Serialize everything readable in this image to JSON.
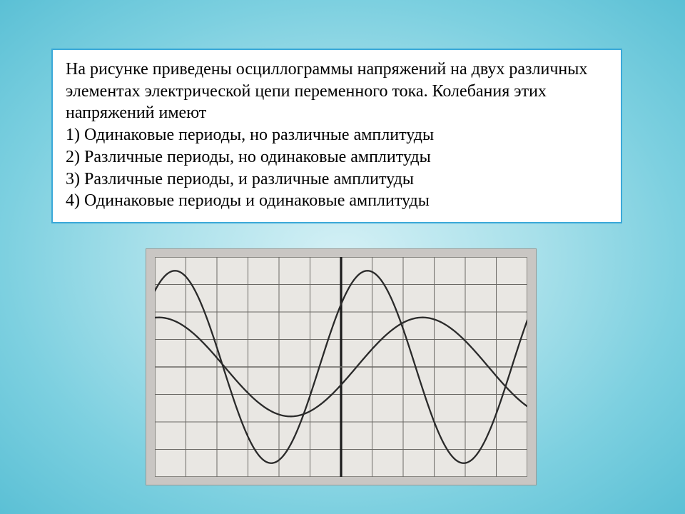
{
  "question": {
    "intro": "На рисунке приведены осциллограммы напряжений на двух различных элементах электрической цепи переменного тока. Колебания этих напряжений имеют",
    "options": [
      "1) Одинаковые периоды, но различные амплитуды",
      "2) Различные периоды, но одинаковые амплитуды",
      "3) Различные периоды, и различные амплитуды",
      "4) Одинаковые периоды и одинаковые амплитуды"
    ],
    "text_color": "#000000",
    "box_bg": "#ffffff",
    "box_border": "#3aa8d8",
    "font_size_pt": 18
  },
  "background": {
    "gradient_center": "#d4f0f5",
    "gradient_edge": "#5bc0d5"
  },
  "chart": {
    "type": "line",
    "panel_bg": "#e9e7e3",
    "outer_bg": "#c9c6c3",
    "grid_color": "#6b6965",
    "axis_color": "#1a1a1a",
    "line_color": "#2a2a2a",
    "line_width": 2.3,
    "grid_width": 1,
    "cols": 12,
    "rows": 8,
    "cell_w": 43.5,
    "cell_h": 38.5,
    "mid_y": 154,
    "series": [
      {
        "name": "wave1",
        "amplitude_cells": 3.5,
        "period_cells": 6.2,
        "phase_cells": -0.9,
        "notes": "large amplitude, ~2 periods visible"
      },
      {
        "name": "wave2",
        "amplitude_cells": 1.8,
        "period_cells": 8.5,
        "phase_cells": -2.0,
        "notes": "small amplitude, ~1.4 periods visible"
      }
    ]
  }
}
